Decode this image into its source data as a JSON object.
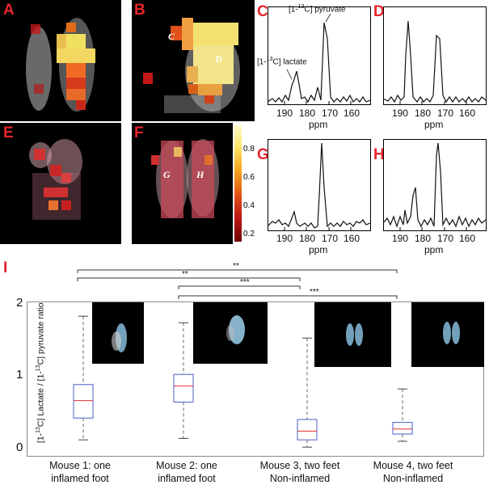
{
  "panels": {
    "labels": [
      "A",
      "B",
      "C",
      "D",
      "E",
      "F",
      "G",
      "H",
      "I"
    ],
    "roi_labels": [
      "C",
      "D",
      "G",
      "H"
    ]
  },
  "spectra": {
    "x_ticks": [
      "190",
      "180",
      "170",
      "160"
    ],
    "x_label": "ppm",
    "ann_pyruvate": "[1-13C] pyruvate",
    "ann_lactate": "[1-13C] lactate"
  },
  "colorbar": {
    "ticks": [
      "0.8",
      "0.6",
      "0.4",
      "0.2"
    ]
  },
  "boxplot": {
    "ylabel": "[1-13C] Lactate / [1-13C] pyruvate ratio",
    "yticks": [
      "2",
      "1",
      "0"
    ],
    "categories": [
      {
        "line1": "Mouse 1: one",
        "line2": "inflamed foot"
      },
      {
        "line1": "Mouse 2: one",
        "line2": "inflamed foot"
      },
      {
        "line1": "Mouse 3, two feet",
        "line2": "Non-inflamed"
      },
      {
        "line1": "Mouse 4, two feet",
        "line2": "Non-inflamed"
      }
    ],
    "significance": [
      "**",
      "**",
      "***",
      "***"
    ]
  },
  "chart_data": {
    "type": "box",
    "ylabel": "[1-13C] Lactate / [1-13C] pyruvate ratio",
    "ylim": [
      0,
      2
    ],
    "categories": [
      "Mouse 1: one inflamed foot",
      "Mouse 2: one inflamed foot",
      "Mouse 3, two feet Non-inflamed",
      "Mouse 4, two feet Non-inflamed"
    ],
    "boxes": [
      {
        "whisker_low": 0.12,
        "q1": 0.42,
        "median": 0.66,
        "q3": 0.88,
        "whisker_high": 1.82
      },
      {
        "whisker_low": 0.14,
        "q1": 0.64,
        "median": 0.86,
        "q3": 1.02,
        "whisker_high": 1.73
      },
      {
        "whisker_low": 0.02,
        "q1": 0.12,
        "median": 0.24,
        "q3": 0.4,
        "whisker_high": 1.52
      },
      {
        "whisker_low": 0.1,
        "q1": 0.2,
        "median": 0.27,
        "q3": 0.36,
        "whisker_high": 0.82
      }
    ]
  }
}
